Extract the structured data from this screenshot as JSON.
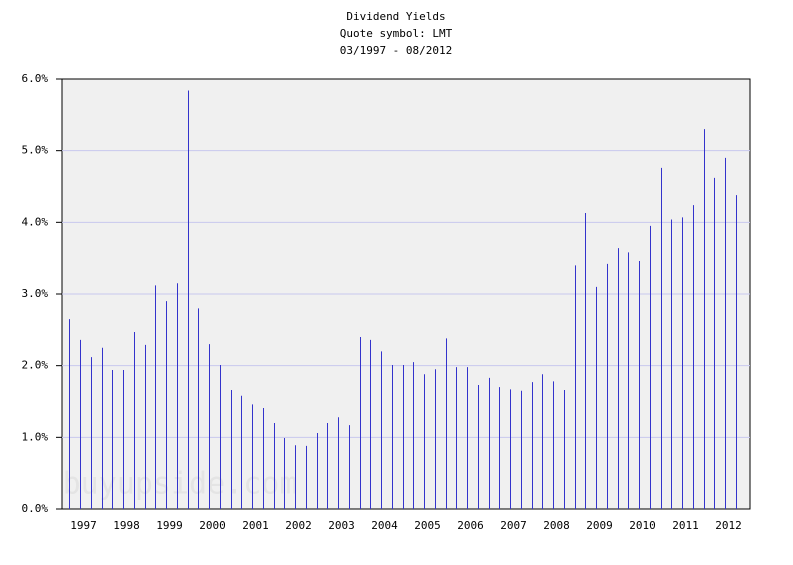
{
  "chart_data": {
    "type": "bar",
    "title": "Dividend Yields",
    "subtitle": "Quote symbol: LMT",
    "date_range": "03/1997 - 08/2012",
    "watermark": "buyupside.com",
    "x": [
      1997.17,
      1997.42,
      1997.67,
      1997.92,
      1998.17,
      1998.42,
      1998.67,
      1998.92,
      1999.17,
      1999.42,
      1999.67,
      1999.92,
      2000.17,
      2000.42,
      2000.67,
      2000.92,
      2001.17,
      2001.42,
      2001.67,
      2001.92,
      2002.17,
      2002.42,
      2002.67,
      2002.92,
      2003.17,
      2003.42,
      2003.67,
      2003.92,
      2004.17,
      2004.42,
      2004.67,
      2004.92,
      2005.17,
      2005.42,
      2005.67,
      2005.92,
      2006.17,
      2006.42,
      2006.67,
      2006.92,
      2007.17,
      2007.42,
      2007.67,
      2007.92,
      2008.17,
      2008.42,
      2008.67,
      2008.92,
      2009.17,
      2009.42,
      2009.67,
      2009.92,
      2010.17,
      2010.42,
      2010.67,
      2010.92,
      2011.17,
      2011.42,
      2011.67,
      2011.92,
      2012.17,
      2012.42,
      2012.67
    ],
    "values": [
      2.65,
      2.36,
      2.12,
      2.25,
      1.94,
      1.94,
      2.47,
      2.29,
      3.12,
      2.9,
      3.15,
      5.84,
      2.8,
      2.3,
      2.01,
      1.66,
      1.58,
      1.46,
      1.41,
      1.2,
      0.99,
      0.89,
      0.88,
      1.06,
      1.2,
      1.28,
      1.17,
      2.4,
      2.36,
      2.2,
      2.01,
      2.01,
      2.05,
      1.88,
      1.95,
      2.38,
      1.98,
      1.98,
      1.73,
      1.83,
      1.7,
      1.67,
      1.65,
      1.77,
      1.88,
      1.78,
      1.66,
      3.4,
      4.13,
      3.1,
      3.42,
      3.64,
      3.58,
      3.46,
      3.95,
      4.76,
      4.04,
      4.07,
      4.24,
      5.3,
      4.62,
      4.9,
      4.38
    ],
    "color": "#3333cc",
    "xlim": [
      1997,
      2013
    ],
    "xticks": [
      {
        "value": 1997.5,
        "label": "1997"
      },
      {
        "value": 1998.5,
        "label": "1998"
      },
      {
        "value": 1999.5,
        "label": "1999"
      },
      {
        "value": 2000.5,
        "label": "2000"
      },
      {
        "value": 2001.5,
        "label": "2001"
      },
      {
        "value": 2002.5,
        "label": "2002"
      },
      {
        "value": 2003.5,
        "label": "2003"
      },
      {
        "value": 2004.5,
        "label": "2004"
      },
      {
        "value": 2005.5,
        "label": "2005"
      },
      {
        "value": 2006.5,
        "label": "2006"
      },
      {
        "value": 2007.5,
        "label": "2007"
      },
      {
        "value": 2008.5,
        "label": "2008"
      },
      {
        "value": 2009.5,
        "label": "2009"
      },
      {
        "value": 2010.5,
        "label": "2010"
      },
      {
        "value": 2011.5,
        "label": "2011"
      },
      {
        "value": 2012.5,
        "label": "2012"
      }
    ],
    "ylim": [
      0,
      6
    ],
    "yticks": [
      {
        "value": 0,
        "label": "0.0%"
      },
      {
        "value": 1,
        "label": "1.0%"
      },
      {
        "value": 2,
        "label": "2.0%"
      },
      {
        "value": 3,
        "label": "3.0%"
      },
      {
        "value": 4,
        "label": "4.0%"
      },
      {
        "value": 5,
        "label": "5.0%"
      },
      {
        "value": 6,
        "label": "6.0%"
      }
    ],
    "grid": true
  }
}
